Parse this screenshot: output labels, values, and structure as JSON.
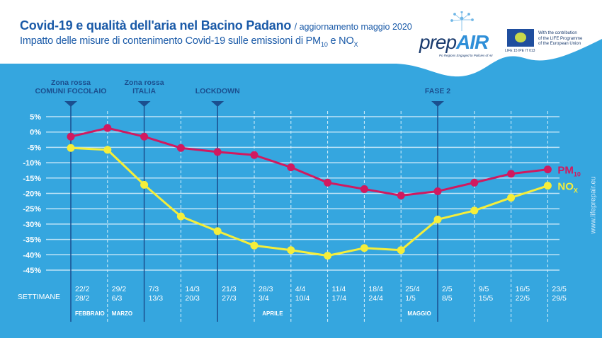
{
  "header": {
    "title": "Covid-19 e qualità dell'aria nel Bacino Padano",
    "update": "/ aggiornamento maggio 2020",
    "subtitle_prefix": "Impatto delle misure di contenimento Covid-19 sulle emissioni di PM",
    "subtitle_pm_sub": "10",
    "subtitle_mid": " e NO",
    "subtitle_nox_sub": "X"
  },
  "logos": {
    "prepair_pre": "prep",
    "prepair_air": "AIR",
    "prepair_tagline": "Po Regions Engaged to Policies of Air",
    "eu_code": "LIFE 15 IPE IT 013",
    "eu_text_lines": [
      "With the contribution",
      "of the LIFE Programme",
      "of the European Union"
    ]
  },
  "website": "www.lifeprepair.eu",
  "colors": {
    "background_blue": "#35a6df",
    "pm10": "#d1195f",
    "nox": "#f5ee3a",
    "marker_dark": "#1b4f8f",
    "grid": "#bfe4f7"
  },
  "chart_data": {
    "type": "line",
    "title": "Impatto delle misure di contenimento Covid-19 sulle emissioni di PM10 e NOx",
    "xlabel": "SETTIMANE",
    "ylabel": "",
    "ylim": [
      -45,
      5
    ],
    "yticks": [
      5,
      0,
      -5,
      -10,
      -15,
      -20,
      -25,
      -30,
      -35,
      -40,
      -45
    ],
    "ytick_labels": [
      "5%",
      "0%",
      "-5%",
      "-10%",
      "-15%",
      "-20%",
      "-25%",
      "-30%",
      "-35%",
      "-40%",
      "-45%"
    ],
    "grid": true,
    "weeks": [
      {
        "start": "22/2",
        "end": "28/2"
      },
      {
        "start": "29/2",
        "end": "6/3"
      },
      {
        "start": "7/3",
        "end": "13/3"
      },
      {
        "start": "14/3",
        "end": "20/3"
      },
      {
        "start": "21/3",
        "end": "27/3"
      },
      {
        "start": "28/3",
        "end": "3/4"
      },
      {
        "start": "4/4",
        "end": "10/4"
      },
      {
        "start": "11/4",
        "end": "17/4"
      },
      {
        "start": "18/4",
        "end": "24/4"
      },
      {
        "start": "25/4",
        "end": "1/5"
      },
      {
        "start": "2/5",
        "end": "8/5"
      },
      {
        "start": "9/5",
        "end": "15/5"
      },
      {
        "start": "16/5",
        "end": "22/5"
      },
      {
        "start": "23/5",
        "end": "29/5"
      }
    ],
    "months": [
      {
        "label": "FEBBRAIO",
        "week_index": 0
      },
      {
        "label": "MARZO",
        "week_index": 1
      },
      {
        "label": "APRILE",
        "week_index": 5.5
      },
      {
        "label": "MAGGIO",
        "week_index": 9.5
      }
    ],
    "events": [
      {
        "line1": "Zona rossa",
        "line2": "COMUNI FOCOLAIO",
        "week_index": 0
      },
      {
        "line1": "Zona rossa",
        "line2": "ITALIA",
        "week_index": 2
      },
      {
        "line1": "",
        "line2": "LOCKDOWN",
        "week_index": 4
      },
      {
        "line1": "",
        "line2": "FASE 2",
        "week_index": 10
      }
    ],
    "series": [
      {
        "name": "PM10",
        "label_main": "PM",
        "label_sub": "10",
        "values": [
          -1.5,
          1.3,
          -1.5,
          -5.2,
          -6.5,
          -7.5,
          -11.5,
          -16.5,
          -18.6,
          -20.7,
          -19.3,
          -16.5,
          -13.6,
          -12.2
        ]
      },
      {
        "name": "NOx",
        "label_main": "NO",
        "label_sub": "X",
        "values": [
          -5.2,
          -5.8,
          -17.2,
          -27.5,
          -32.3,
          -37.0,
          -38.5,
          -40.3,
          -37.8,
          -38.5,
          -28.5,
          -25.6,
          -21.4,
          -17.5
        ]
      }
    ]
  }
}
